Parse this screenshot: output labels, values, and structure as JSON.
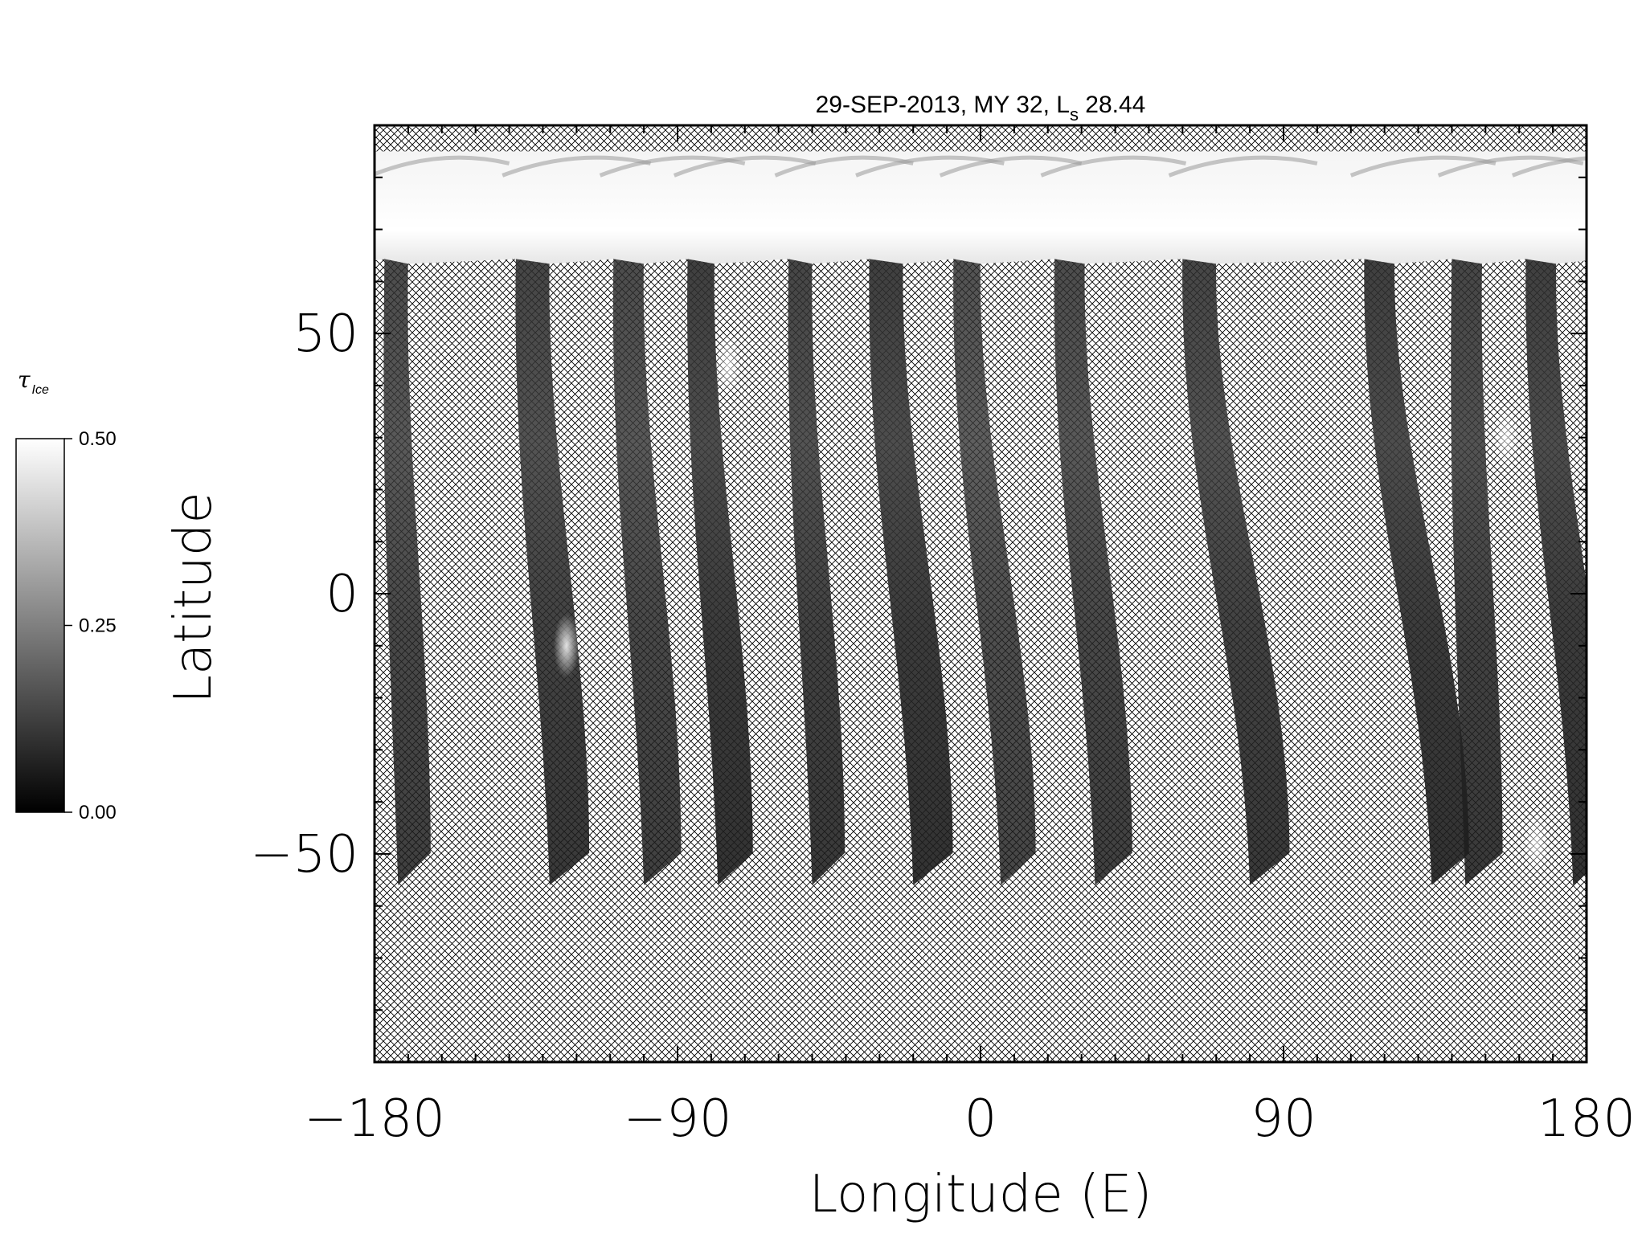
{
  "chart_data": {
    "type": "heatmap",
    "title": {
      "prefix": "29-SEP-2013, MY 32,  L",
      "subscript": "s",
      "suffix": " 28.44"
    },
    "xlabel": "Longitude (E)",
    "ylabel": "Latitude",
    "xlim": [
      -180,
      180
    ],
    "ylim": [
      -90,
      90
    ],
    "x_ticks": [
      {
        "value": -180,
        "label": "−180"
      },
      {
        "value": -90,
        "label": "−90"
      },
      {
        "value": 0,
        "label": "0"
      },
      {
        "value": 90,
        "label": "90"
      },
      {
        "value": 180,
        "label": "180"
      }
    ],
    "y_ticks": [
      {
        "value": -50,
        "label": "−50"
      },
      {
        "value": 0,
        "label": "0"
      },
      {
        "value": 50,
        "label": "50"
      }
    ],
    "x_minor_step": 10,
    "y_minor_step": 10,
    "no_data_fill": "crosshatch",
    "colorbar": {
      "title": "τ",
      "title_sub": "Ice",
      "min": 0.0,
      "max": 0.5,
      "ticks": [
        {
          "value": 0.0,
          "label": "0.00"
        },
        {
          "value": 0.25,
          "label": "0.25"
        },
        {
          "value": 0.5,
          "label": "0.50"
        }
      ],
      "color_low": "#000000",
      "color_high": "#ffffff",
      "placement": "left"
    },
    "north_cap": {
      "lat_bottom": 64,
      "lat_top": 85,
      "value": 0.5
    },
    "swaths": [
      {
        "lon_top": -177,
        "lon_bottom": -173,
        "lat_south": -56,
        "width": 7,
        "value": 0.08
      },
      {
        "lon_top": -138,
        "lon_bottom": -128,
        "lat_south": -56,
        "width": 10,
        "value": 0.09
      },
      {
        "lon_top": -109,
        "lon_bottom": -100,
        "lat_south": -56,
        "width": 9,
        "value": 0.08
      },
      {
        "lon_top": -87,
        "lon_bottom": -78,
        "lat_south": -56,
        "width": 8,
        "value": 0.1
      },
      {
        "lon_top": -57,
        "lon_bottom": -50,
        "lat_south": -56,
        "width": 7,
        "value": 0.09
      },
      {
        "lon_top": -33,
        "lon_bottom": -20,
        "lat_south": -56,
        "width": 10,
        "value": 0.1
      },
      {
        "lon_top": -8,
        "lon_bottom": 6,
        "lat_south": -56,
        "width": 8,
        "value": 0.07
      },
      {
        "lon_top": 22,
        "lon_bottom": 34,
        "lat_south": -56,
        "width": 9,
        "value": 0.08
      },
      {
        "lon_top": 60,
        "lon_bottom": 80,
        "lat_south": -56,
        "width": 10,
        "value": 0.09
      },
      {
        "lon_top": 114,
        "lon_bottom": 134,
        "lat_south": -56,
        "width": 9,
        "value": 0.1
      },
      {
        "lon_top": 140,
        "lon_bottom": 144,
        "lat_south": -56,
        "width": 9,
        "value": 0.09
      },
      {
        "lon_top": 162,
        "lon_bottom": 176,
        "lat_south": -56,
        "width": 9,
        "value": 0.1
      }
    ],
    "bright_patches": [
      {
        "lon": -123,
        "lat": -10,
        "value": 0.45
      },
      {
        "lon": -75,
        "lat": 44,
        "value": 0.38
      },
      {
        "lon": 156,
        "lat": 30,
        "value": 0.35
      },
      {
        "lon": 165,
        "lat": -48,
        "value": 0.35
      }
    ]
  }
}
